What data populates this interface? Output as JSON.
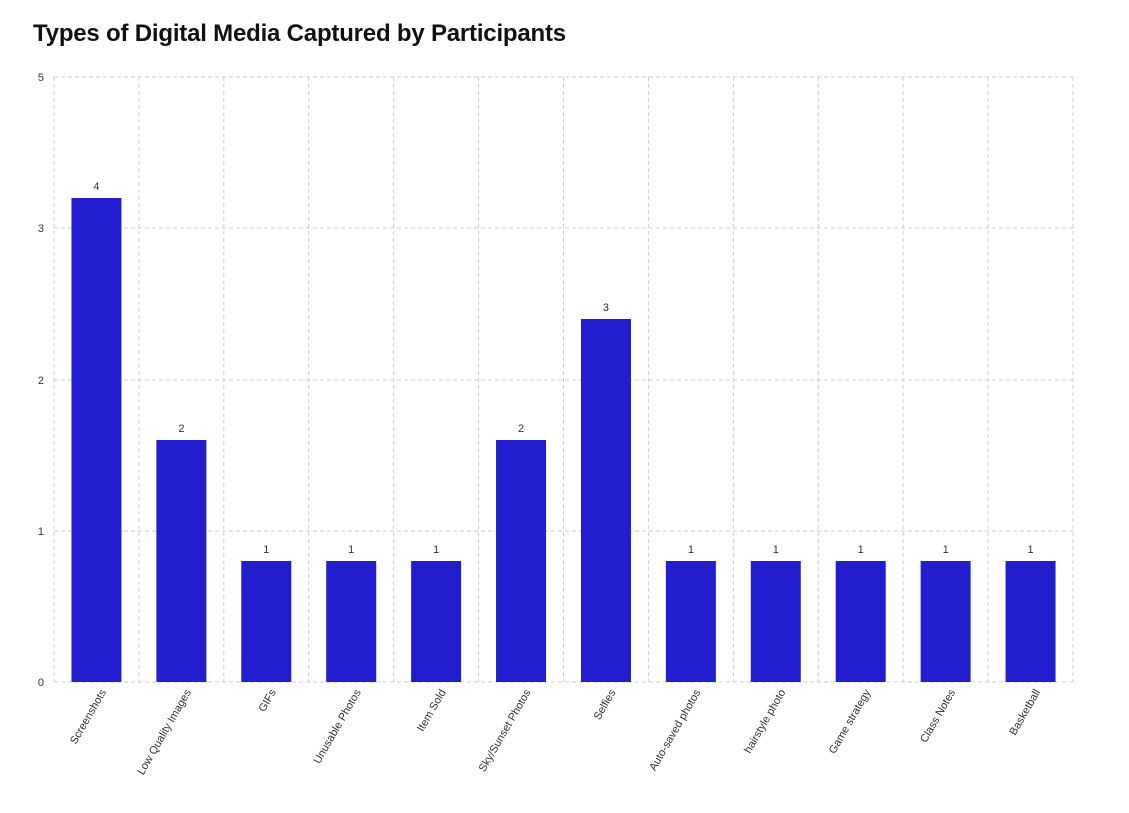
{
  "title": "Types of Digital Media Captured by Participants",
  "chart_data": {
    "type": "bar",
    "title": "Types of Digital Media Captured by Participants",
    "categories": [
      "Screenshots",
      "Low Quality Images",
      "GIFs",
      "Unusable Photos",
      "Item Sold",
      "Sky/Sunset Photos",
      "Selfies",
      "Auto-saved photos",
      "hairstyle photo",
      "Game strategy",
      "Class Notes",
      "Basketball"
    ],
    "values": [
      4,
      2,
      1,
      1,
      1,
      2,
      3,
      1,
      1,
      1,
      1,
      1
    ],
    "value_labels": [
      "4",
      "2",
      "1",
      "1",
      "1",
      "2",
      "3",
      "1",
      "1",
      "1",
      "1",
      "1"
    ],
    "y_ticks": [
      {
        "label": "0",
        "value": 0
      },
      {
        "label": "1",
        "value": 1
      },
      {
        "label": "2",
        "value": 2
      },
      {
        "label": "3",
        "value": 3
      },
      {
        "label": "5",
        "value": 5
      }
    ],
    "ylim": [
      0,
      5
    ],
    "xlabel": "",
    "ylabel": "",
    "grid": true,
    "bar_color": "#221ecf",
    "grid_color": "#cccccc"
  }
}
